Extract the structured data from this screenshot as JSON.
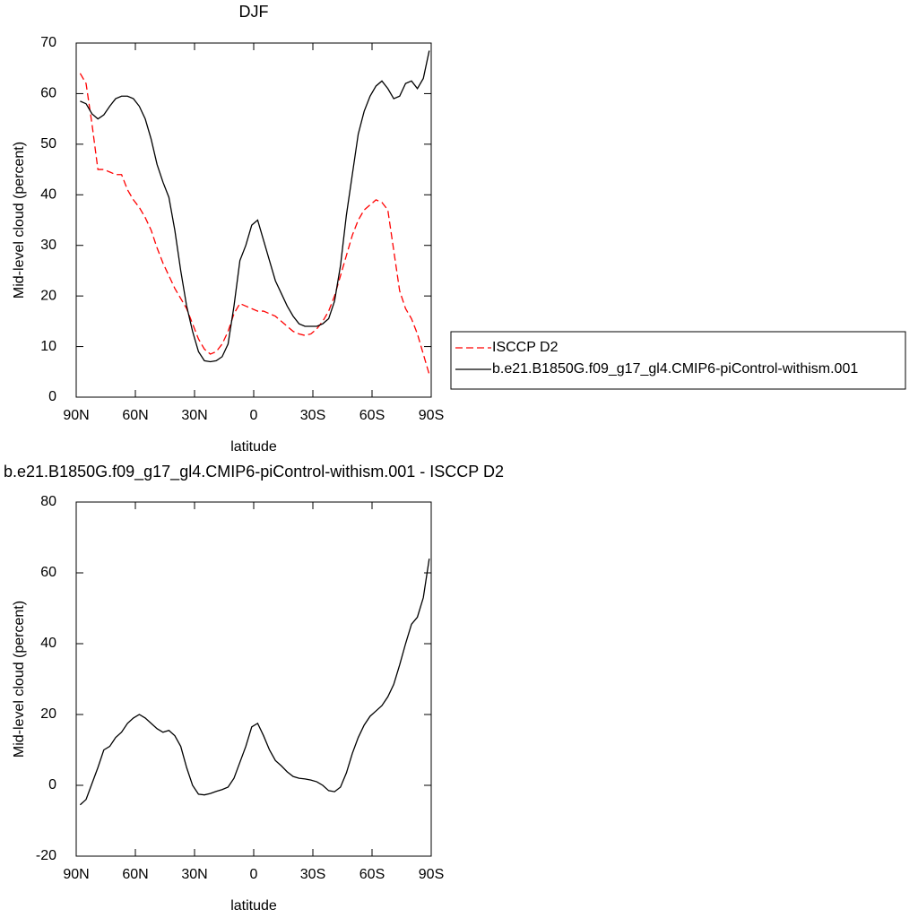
{
  "chart_data": [
    {
      "type": "line",
      "title": "DJF",
      "x_label": "latitude",
      "y_label": "Mid-level cloud (percent)",
      "x": [
        88,
        85,
        82,
        79,
        76,
        73,
        70,
        67,
        64,
        61,
        58,
        55,
        52,
        49,
        46,
        43,
        40,
        37,
        34,
        31,
        28,
        25,
        22,
        19,
        16,
        13,
        10,
        7,
        4,
        1,
        -2,
        -5,
        -8,
        -11,
        -14,
        -17,
        -20,
        -23,
        -26,
        -29,
        -32,
        -35,
        -38,
        -41,
        -44,
        -47,
        -50,
        -53,
        -56,
        -59,
        -62,
        -65,
        -68,
        -71,
        -74,
        -77,
        -80,
        -83,
        -86,
        -89
      ],
      "series": [
        {
          "name": "ISCCP D2",
          "color": "#ff0000",
          "dash": "dashed",
          "values": [
            64,
            62,
            54,
            45,
            45,
            44.5,
            44,
            44,
            41,
            39,
            37.5,
            35.5,
            33,
            29.5,
            26.5,
            24,
            21.5,
            19.5,
            17.5,
            14.5,
            11.5,
            9.5,
            8.5,
            9,
            10.5,
            13,
            16.5,
            18.5,
            18,
            17.5,
            17,
            17,
            16.5,
            16,
            15,
            14,
            13,
            12.5,
            12.2,
            12.5,
            13.5,
            15,
            17,
            20,
            24,
            28,
            32,
            35,
            37,
            38,
            39,
            38.5,
            37,
            29,
            21,
            17.5,
            15.5,
            12.5,
            8.5,
            4.5
          ]
        },
        {
          "name": "b.e21.B1850G.f09_g17_gl4.CMIP6-piControl-withism.001",
          "color": "#000000",
          "dash": "solid",
          "values": [
            58.5,
            58,
            56,
            55,
            55.8,
            57.5,
            59,
            59.5,
            59.5,
            59,
            57.5,
            55,
            51,
            46,
            42.5,
            39.5,
            33,
            25,
            18,
            13,
            9,
            7.2,
            7,
            7.2,
            8,
            10.5,
            18,
            27,
            30,
            34,
            35,
            31,
            27,
            23,
            20.5,
            18,
            16,
            14.5,
            14,
            14,
            14,
            14.5,
            15.5,
            19,
            26,
            36,
            44,
            52,
            56.5,
            59.5,
            61.5,
            62.5,
            61,
            59,
            59.5,
            62,
            62.5,
            61,
            63,
            68.5
          ]
        }
      ],
      "xlim": [
        90,
        -90
      ],
      "xticks": [
        {
          "value": 90,
          "label": "90N"
        },
        {
          "value": 60,
          "label": "60N"
        },
        {
          "value": 30,
          "label": "30N"
        },
        0,
        {
          "value": -30,
          "label": "30S"
        },
        {
          "value": -60,
          "label": "60S"
        },
        {
          "value": -90,
          "label": "90S"
        }
      ],
      "ylim": [
        0,
        70
      ],
      "yticks": [
        0,
        10,
        20,
        30,
        40,
        50,
        60,
        70
      ],
      "legend": "right",
      "grid": false
    },
    {
      "type": "line",
      "title": "b.e21.B1850G.f09_g17_gl4.CMIP6-piControl-withism.001 - ISCCP D2",
      "x_label": "latitude",
      "y_label": "Mid-level cloud (percent)",
      "x": [
        88,
        85,
        82,
        79,
        76,
        73,
        70,
        67,
        64,
        61,
        58,
        55,
        52,
        49,
        46,
        43,
        40,
        37,
        34,
        31,
        28,
        25,
        22,
        19,
        16,
        13,
        10,
        7,
        4,
        1,
        -2,
        -5,
        -8,
        -11,
        -14,
        -17,
        -20,
        -23,
        -26,
        -29,
        -32,
        -35,
        -38,
        -41,
        -44,
        -47,
        -50,
        -53,
        -56,
        -59,
        -62,
        -65,
        -68,
        -71,
        -74,
        -77,
        -80,
        -83,
        -86,
        -89
      ],
      "series": [
        {
          "color": "#000000",
          "dash": "solid",
          "values": [
            -5.5,
            -4,
            0.5,
            5,
            10,
            11,
            13.5,
            15,
            17.5,
            19,
            20,
            19,
            17.5,
            16,
            15,
            15.5,
            14,
            11,
            5,
            0,
            -2.5,
            -2.7,
            -2.3,
            -1.7,
            -1.2,
            -0.5,
            2,
            6.5,
            11,
            16.5,
            17.5,
            14,
            10,
            7,
            5.5,
            3.8,
            2.5,
            2,
            1.8,
            1.5,
            1,
            0,
            -1.5,
            -1.8,
            -0.5,
            3.5,
            9,
            13.5,
            17,
            19.5,
            21,
            22.5,
            25,
            28.5,
            34,
            40,
            45.5,
            47.5,
            53,
            64
          ]
        }
      ],
      "xlim": [
        90,
        -90
      ],
      "xticks": [
        {
          "value": 90,
          "label": "90N"
        },
        {
          "value": 60,
          "label": "60N"
        },
        {
          "value": 30,
          "label": "30N"
        },
        0,
        {
          "value": -30,
          "label": "30S"
        },
        {
          "value": -60,
          "label": "60S"
        },
        {
          "value": -90,
          "label": "90S"
        }
      ],
      "ylim": [
        -20,
        80
      ],
      "yticks": [
        -20,
        0,
        20,
        40,
        60,
        80
      ],
      "grid": false
    }
  ]
}
